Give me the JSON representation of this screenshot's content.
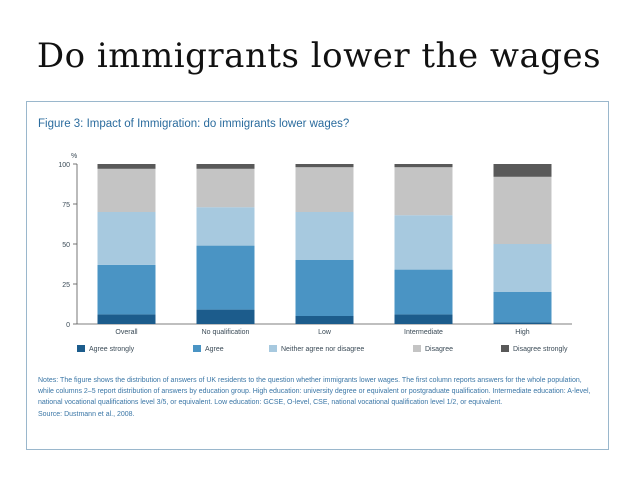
{
  "slide": {
    "title": "Do immigrants lower the wages"
  },
  "figure": {
    "title": "Figure 3: Impact of Immigration: do immigrants lower wages?",
    "notes": "Notes: The figure shows the distribution of answers of UK residents to the question whether immigrants lower wages. The first column reports answers for the whole population, while columns 2–5 report distribution of answers by education group. High education: university degree or equivalent or postgraduate qualification. Intermediate education: A-level, national vocational qualifications level 3/5, or equivalent. Low education: GCSE, O-level, CSE, national vocational qualification level 1/2, or equivalent.",
    "source": "Source: Dustmann et al., 2008."
  },
  "chart_data": {
    "type": "bar",
    "stacked": true,
    "title": "Figure 3: Impact of Immigration: do immigrants lower wages?",
    "ylabel": "%",
    "xlabel": "",
    "ylim": [
      0,
      100
    ],
    "yticks": [
      0,
      25,
      50,
      75,
      100
    ],
    "categories": [
      "Overall",
      "No qualification",
      "Low",
      "Intermediate",
      "High"
    ],
    "series": [
      {
        "name": "Agree strongly",
        "color": "#1c5c8c",
        "values": [
          6,
          9,
          5,
          6,
          1
        ]
      },
      {
        "name": "Agree",
        "color": "#4a94c4",
        "values": [
          31,
          40,
          35,
          28,
          19
        ]
      },
      {
        "name": "Neither agree nor disagree",
        "color": "#a7c9df",
        "values": [
          33,
          24,
          30,
          34,
          30
        ]
      },
      {
        "name": "Disagree",
        "color": "#c4c4c4",
        "values": [
          27,
          24,
          28,
          30,
          42
        ]
      },
      {
        "name": "Disagree strongly",
        "color": "#595959",
        "values": [
          3,
          3,
          2,
          2,
          8
        ]
      }
    ],
    "legend_position": "bottom"
  }
}
